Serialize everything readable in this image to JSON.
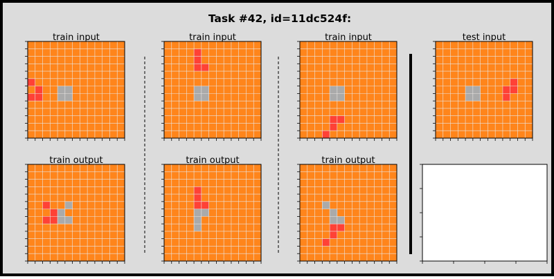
{
  "title": "Task #42, id=11dc524f:",
  "grid_size": 13,
  "colors": {
    "background": "#dcdcdc",
    "orange": "#ff851b",
    "red": "#ff4136",
    "gray": "#aaaaaa",
    "gridline": "#e8e8e8",
    "empty_panel": "#ffffff"
  },
  "panels": [
    {
      "label": "train input",
      "cells": [
        {
          "r": 5,
          "c": 0,
          "v": "red"
        },
        {
          "r": 6,
          "c": 1,
          "v": "red"
        },
        {
          "r": 7,
          "c": 0,
          "v": "red"
        },
        {
          "r": 7,
          "c": 1,
          "v": "red"
        },
        {
          "r": 6,
          "c": 4,
          "v": "gray"
        },
        {
          "r": 6,
          "c": 5,
          "v": "gray"
        },
        {
          "r": 7,
          "c": 4,
          "v": "gray"
        },
        {
          "r": 7,
          "c": 5,
          "v": "gray"
        }
      ]
    },
    {
      "label": "train input",
      "cells": [
        {
          "r": 1,
          "c": 4,
          "v": "red"
        },
        {
          "r": 2,
          "c": 4,
          "v": "red"
        },
        {
          "r": 3,
          "c": 4,
          "v": "red"
        },
        {
          "r": 3,
          "c": 5,
          "v": "red"
        },
        {
          "r": 6,
          "c": 4,
          "v": "gray"
        },
        {
          "r": 6,
          "c": 5,
          "v": "gray"
        },
        {
          "r": 7,
          "c": 4,
          "v": "gray"
        },
        {
          "r": 7,
          "c": 5,
          "v": "gray"
        }
      ]
    },
    {
      "label": "train input",
      "cells": [
        {
          "r": 6,
          "c": 4,
          "v": "gray"
        },
        {
          "r": 6,
          "c": 5,
          "v": "gray"
        },
        {
          "r": 7,
          "c": 4,
          "v": "gray"
        },
        {
          "r": 7,
          "c": 5,
          "v": "gray"
        },
        {
          "r": 10,
          "c": 4,
          "v": "red"
        },
        {
          "r": 10,
          "c": 5,
          "v": "red"
        },
        {
          "r": 11,
          "c": 4,
          "v": "red"
        },
        {
          "r": 12,
          "c": 3,
          "v": "red"
        }
      ]
    },
    {
      "label": "test input",
      "cells": [
        {
          "r": 6,
          "c": 4,
          "v": "gray"
        },
        {
          "r": 6,
          "c": 5,
          "v": "gray"
        },
        {
          "r": 7,
          "c": 4,
          "v": "gray"
        },
        {
          "r": 7,
          "c": 5,
          "v": "gray"
        },
        {
          "r": 5,
          "c": 10,
          "v": "red"
        },
        {
          "r": 6,
          "c": 9,
          "v": "red"
        },
        {
          "r": 6,
          "c": 10,
          "v": "red"
        },
        {
          "r": 7,
          "c": 9,
          "v": "red"
        }
      ]
    },
    {
      "label": "train output",
      "cells": [
        {
          "r": 5,
          "c": 2,
          "v": "red"
        },
        {
          "r": 6,
          "c": 3,
          "v": "red"
        },
        {
          "r": 7,
          "c": 2,
          "v": "red"
        },
        {
          "r": 7,
          "c": 3,
          "v": "red"
        },
        {
          "r": 5,
          "c": 5,
          "v": "gray"
        },
        {
          "r": 6,
          "c": 4,
          "v": "gray"
        },
        {
          "r": 7,
          "c": 4,
          "v": "gray"
        },
        {
          "r": 7,
          "c": 5,
          "v": "gray"
        }
      ]
    },
    {
      "label": "train output",
      "cells": [
        {
          "r": 3,
          "c": 4,
          "v": "red"
        },
        {
          "r": 4,
          "c": 4,
          "v": "red"
        },
        {
          "r": 5,
          "c": 4,
          "v": "red"
        },
        {
          "r": 5,
          "c": 5,
          "v": "red"
        },
        {
          "r": 6,
          "c": 4,
          "v": "gray"
        },
        {
          "r": 6,
          "c": 5,
          "v": "gray"
        },
        {
          "r": 7,
          "c": 4,
          "v": "gray"
        },
        {
          "r": 8,
          "c": 4,
          "v": "gray"
        }
      ]
    },
    {
      "label": "train output",
      "cells": [
        {
          "r": 5,
          "c": 3,
          "v": "gray"
        },
        {
          "r": 6,
          "c": 4,
          "v": "gray"
        },
        {
          "r": 7,
          "c": 4,
          "v": "gray"
        },
        {
          "r": 7,
          "c": 5,
          "v": "gray"
        },
        {
          "r": 8,
          "c": 4,
          "v": "red"
        },
        {
          "r": 8,
          "c": 5,
          "v": "red"
        },
        {
          "r": 9,
          "c": 4,
          "v": "red"
        },
        {
          "r": 10,
          "c": 3,
          "v": "red"
        }
      ]
    },
    {
      "label": "",
      "cells": [],
      "empty": true
    }
  ]
}
